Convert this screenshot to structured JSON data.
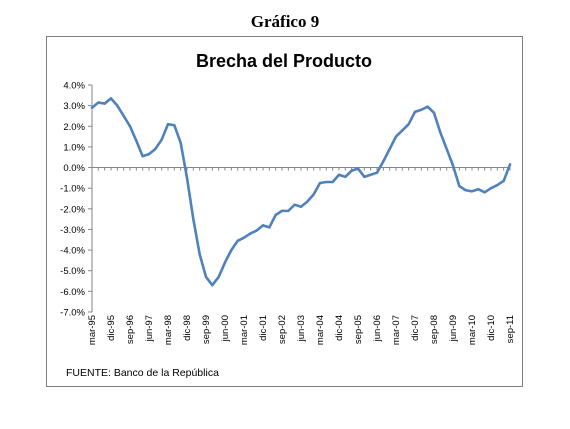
{
  "figure_label": "Gráfico 9",
  "source_note": "FUENTE: Banco de la República",
  "colors": {
    "line": "#4f81bd",
    "axis": "#868686"
  },
  "chart_data": {
    "type": "line",
    "title": "Brecha del Producto",
    "xlabel": "",
    "ylabel": "",
    "ylim": [
      -7.0,
      4.0
    ],
    "yticks": [
      4.0,
      3.0,
      2.0,
      1.0,
      0.0,
      -1.0,
      -2.0,
      -3.0,
      -4.0,
      -5.0,
      -6.0,
      -7.0
    ],
    "ytick_labels": [
      "4.0%",
      "3.0%",
      "2.0%",
      "1.0%",
      "0.0%",
      "-1.0%",
      "-2.0%",
      "-3.0%",
      "-4.0%",
      "-5.0%",
      "-6.0%",
      "-7.0%"
    ],
    "grid": false,
    "legend": "none",
    "x_tick_labels": [
      "mar-95",
      "dic-95",
      "sep-96",
      "jun-97",
      "mar-98",
      "dic-98",
      "sep-99",
      "jun-00",
      "mar-01",
      "dic-01",
      "sep-02",
      "jun-03",
      "mar-04",
      "dic-04",
      "sep-05",
      "jun-06",
      "mar-07",
      "dic-07",
      "sep-08",
      "jun-09",
      "mar-10",
      "dic-10",
      "sep-11"
    ],
    "x": [
      "mar-95",
      "jun-95",
      "sep-95",
      "dic-95",
      "mar-96",
      "jun-96",
      "sep-96",
      "dic-96",
      "mar-97",
      "jun-97",
      "sep-97",
      "dic-97",
      "mar-98",
      "jun-98",
      "sep-98",
      "dic-98",
      "mar-99",
      "jun-99",
      "sep-99",
      "dic-99",
      "mar-00",
      "jun-00",
      "sep-00",
      "dic-00",
      "mar-01",
      "jun-01",
      "sep-01",
      "dic-01",
      "mar-02",
      "jun-02",
      "sep-02",
      "dic-02",
      "mar-03",
      "jun-03",
      "sep-03",
      "dic-03",
      "mar-04",
      "jun-04",
      "sep-04",
      "dic-04",
      "mar-05",
      "jun-05",
      "sep-05",
      "dic-05",
      "mar-06",
      "jun-06",
      "sep-06",
      "dic-06",
      "mar-07",
      "jun-07",
      "sep-07",
      "dic-07",
      "mar-08",
      "jun-08",
      "sep-08",
      "dic-08",
      "mar-09",
      "jun-09",
      "sep-09",
      "dic-09",
      "mar-10",
      "jun-10",
      "sep-10",
      "dic-10",
      "mar-11",
      "jun-11",
      "sep-11"
    ],
    "series": [
      {
        "values": [
          2.9,
          3.15,
          3.1,
          3.35,
          3.0,
          2.5,
          2.0,
          1.3,
          0.55,
          0.65,
          0.9,
          1.35,
          2.1,
          2.05,
          1.2,
          -0.5,
          -2.5,
          -4.2,
          -5.3,
          -5.7,
          -5.3,
          -4.6,
          -4.0,
          -3.55,
          -3.4,
          -3.2,
          -3.05,
          -2.8,
          -2.9,
          -2.3,
          -2.1,
          -2.1,
          -1.8,
          -1.9,
          -1.65,
          -1.3,
          -0.75,
          -0.7,
          -0.7,
          -0.35,
          -0.45,
          -0.15,
          -0.05,
          -0.45,
          -0.35,
          -0.25,
          0.3,
          0.9,
          1.5,
          1.8,
          2.1,
          2.7,
          2.8,
          2.95,
          2.65,
          1.7,
          0.9,
          0.1,
          -0.9,
          -1.1,
          -1.15,
          -1.05,
          -1.2,
          -1.0,
          -0.85,
          -0.65,
          0.15
        ]
      }
    ]
  }
}
